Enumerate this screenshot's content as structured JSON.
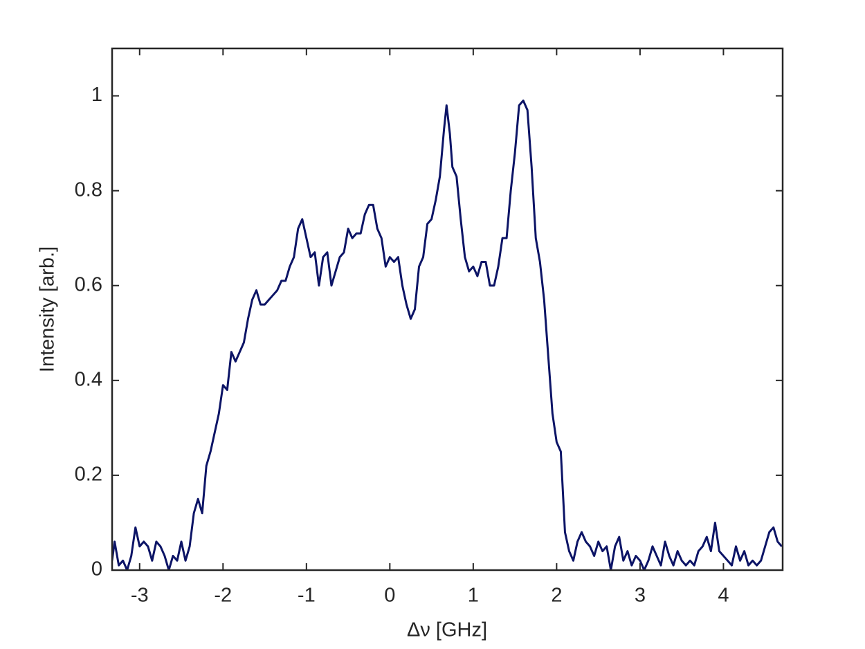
{
  "chart_data": {
    "type": "line",
    "xlabel": "Δν [GHz]",
    "ylabel": "Intensity [arb.]",
    "xlim": [
      -3.33,
      4.71
    ],
    "ylim": [
      0,
      1.1
    ],
    "xticks": [
      -3,
      -2,
      -1,
      0,
      1,
      2,
      3,
      4
    ],
    "yticks": [
      0,
      0.2,
      0.4,
      0.6,
      0.8,
      1
    ],
    "grid": false,
    "box": true,
    "series": [
      {
        "color": "#0c1466",
        "x": [
          -3.33,
          -3.3,
          -3.25,
          -3.2,
          -3.15,
          -3.1,
          -3.05,
          -3.0,
          -2.95,
          -2.9,
          -2.85,
          -2.8,
          -2.75,
          -2.7,
          -2.65,
          -2.6,
          -2.55,
          -2.5,
          -2.45,
          -2.4,
          -2.35,
          -2.3,
          -2.25,
          -2.2,
          -2.15,
          -2.1,
          -2.05,
          -2.0,
          -1.95,
          -1.9,
          -1.85,
          -1.8,
          -1.75,
          -1.7,
          -1.65,
          -1.6,
          -1.55,
          -1.5,
          -1.45,
          -1.4,
          -1.35,
          -1.3,
          -1.25,
          -1.2,
          -1.15,
          -1.1,
          -1.05,
          -1.0,
          -0.95,
          -0.9,
          -0.85,
          -0.8,
          -0.75,
          -0.7,
          -0.65,
          -0.6,
          -0.55,
          -0.5,
          -0.45,
          -0.4,
          -0.35,
          -0.3,
          -0.25,
          -0.2,
          -0.15,
          -0.1,
          -0.05,
          0.0,
          0.05,
          0.1,
          0.15,
          0.2,
          0.25,
          0.3,
          0.35,
          0.4,
          0.45,
          0.5,
          0.55,
          0.6,
          0.65,
          0.68,
          0.72,
          0.75,
          0.8,
          0.85,
          0.9,
          0.95,
          1.0,
          1.05,
          1.1,
          1.15,
          1.2,
          1.25,
          1.3,
          1.35,
          1.4,
          1.45,
          1.5,
          1.55,
          1.6,
          1.65,
          1.7,
          1.75,
          1.8,
          1.85,
          1.9,
          1.95,
          2.0,
          2.05,
          2.1,
          2.15,
          2.2,
          2.25,
          2.3,
          2.35,
          2.4,
          2.45,
          2.5,
          2.55,
          2.6,
          2.65,
          2.7,
          2.75,
          2.8,
          2.85,
          2.9,
          2.95,
          3.0,
          3.05,
          3.1,
          3.15,
          3.2,
          3.25,
          3.3,
          3.35,
          3.4,
          3.45,
          3.5,
          3.55,
          3.6,
          3.65,
          3.7,
          3.75,
          3.8,
          3.85,
          3.9,
          3.95,
          4.0,
          4.05,
          4.1,
          4.15,
          4.2,
          4.25,
          4.3,
          4.35,
          4.4,
          4.45,
          4.5,
          4.55,
          4.6,
          4.65,
          4.7
        ],
        "values": [
          0.02,
          0.06,
          0.01,
          0.02,
          0.0,
          0.03,
          0.09,
          0.05,
          0.06,
          0.05,
          0.02,
          0.06,
          0.05,
          0.03,
          0.0,
          0.03,
          0.02,
          0.06,
          0.02,
          0.05,
          0.12,
          0.15,
          0.12,
          0.22,
          0.25,
          0.29,
          0.33,
          0.39,
          0.38,
          0.46,
          0.44,
          0.46,
          0.48,
          0.53,
          0.57,
          0.59,
          0.56,
          0.56,
          0.57,
          0.58,
          0.59,
          0.61,
          0.61,
          0.64,
          0.66,
          0.72,
          0.74,
          0.7,
          0.66,
          0.67,
          0.6,
          0.66,
          0.67,
          0.6,
          0.63,
          0.66,
          0.67,
          0.72,
          0.7,
          0.71,
          0.71,
          0.75,
          0.77,
          0.77,
          0.72,
          0.7,
          0.64,
          0.66,
          0.65,
          0.66,
          0.6,
          0.56,
          0.53,
          0.55,
          0.64,
          0.66,
          0.73,
          0.74,
          0.78,
          0.83,
          0.93,
          0.98,
          0.92,
          0.85,
          0.83,
          0.74,
          0.66,
          0.63,
          0.64,
          0.62,
          0.65,
          0.65,
          0.6,
          0.6,
          0.64,
          0.7,
          0.7,
          0.8,
          0.88,
          0.98,
          0.99,
          0.97,
          0.85,
          0.7,
          0.65,
          0.57,
          0.45,
          0.33,
          0.27,
          0.25,
          0.08,
          0.04,
          0.02,
          0.06,
          0.08,
          0.06,
          0.05,
          0.03,
          0.06,
          0.04,
          0.05,
          0.0,
          0.05,
          0.07,
          0.02,
          0.04,
          0.01,
          0.03,
          0.02,
          0.0,
          0.02,
          0.05,
          0.03,
          0.01,
          0.06,
          0.03,
          0.01,
          0.04,
          0.02,
          0.01,
          0.02,
          0.01,
          0.04,
          0.05,
          0.07,
          0.04,
          0.1,
          0.04,
          0.03,
          0.02,
          0.01,
          0.05,
          0.02,
          0.04,
          0.01,
          0.02,
          0.01,
          0.02,
          0.05,
          0.08,
          0.09,
          0.06,
          0.05
        ]
      }
    ]
  }
}
